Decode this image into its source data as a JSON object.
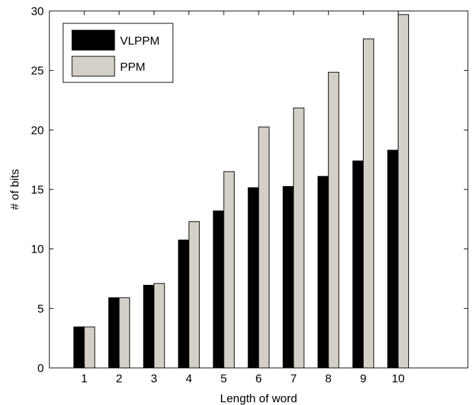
{
  "chart_data": {
    "type": "bar",
    "title": "",
    "xlabel": "Length of word",
    "ylabel": "# of bits",
    "categories": [
      "1",
      "2",
      "3",
      "4",
      "5",
      "6",
      "7",
      "8",
      "9",
      "10"
    ],
    "x_range": [
      0,
      12
    ],
    "ylim": [
      0,
      30
    ],
    "yticks": [
      "0",
      "5",
      "10",
      "15",
      "20",
      "25",
      "30"
    ],
    "grid": false,
    "legend_position": "top-left",
    "series": [
      {
        "name": "VLPPM",
        "color": "#000000",
        "values": [
          3.45,
          5.9,
          6.95,
          10.75,
          13.2,
          15.15,
          15.25,
          16.1,
          17.4,
          18.3
        ]
      },
      {
        "name": "PPM",
        "color": "#d4d0c8",
        "values": [
          3.45,
          5.9,
          7.1,
          12.3,
          16.5,
          20.25,
          21.85,
          24.85,
          27.65,
          29.7
        ]
      }
    ]
  }
}
